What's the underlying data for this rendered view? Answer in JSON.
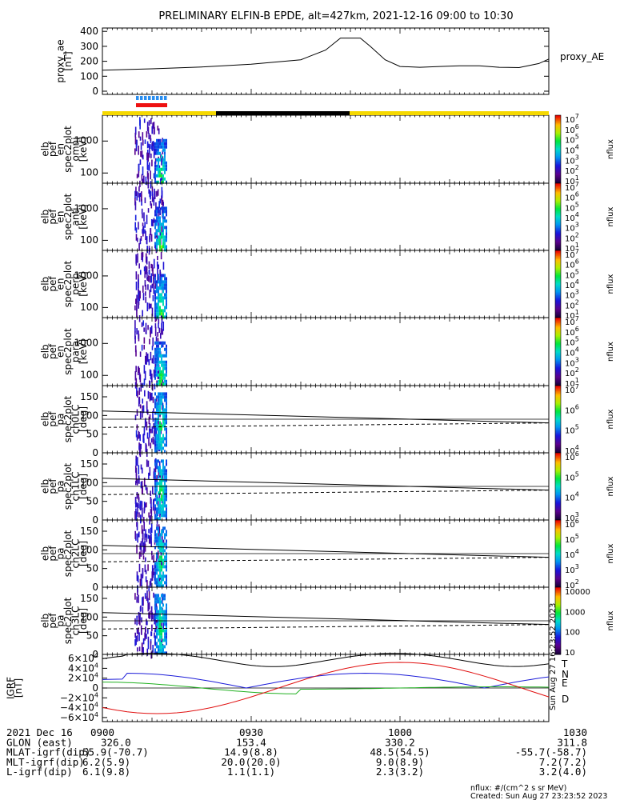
{
  "title": "PRELIMINARY ELFIN-B EPDE, alt=427km, 2021-12-16 09:00 to 10:30",
  "colors": {
    "yellow": "#f5d800",
    "black": "#000000",
    "blue_bar": "#2a8ef0",
    "red_bar": "#ee1111",
    "T": "#000000",
    "N": "#1c1cd8",
    "E": "#20b020",
    "D": "#e01010"
  },
  "chart_data": [
    {
      "type": "line",
      "panel": "proxy_ae",
      "ylabel": "proxy_ae\n[nT]",
      "legend": "proxy_AE",
      "ylim": [
        0,
        420
      ],
      "yticks": [
        "400",
        "300",
        "200",
        "100",
        "0"
      ],
      "x_minutes": [
        0,
        10,
        20,
        30,
        40,
        45,
        48,
        50,
        52,
        54,
        57,
        60,
        64,
        68,
        72,
        76,
        80,
        84,
        88,
        90
      ],
      "values": [
        140,
        150,
        162,
        180,
        210,
        275,
        355,
        355,
        355,
        300,
        210,
        165,
        160,
        165,
        170,
        170,
        160,
        158,
        185,
        215
      ]
    },
    {
      "type": "heatmap",
      "panel": "omni",
      "ylabel": "elb\npef\nen\nspec2plot\nomni\n[keV]",
      "yticks": [
        "1000",
        "100"
      ],
      "cbar_ticks": [
        "10^7",
        "10^6",
        "10^5",
        "10^4",
        "10^3",
        "10^2",
        "10^1"
      ],
      "cbar_label": "nflux"
    },
    {
      "type": "heatmap",
      "panel": "anti",
      "ylabel": "elb\npef\nen\nspec2plot\nanti\n[keV]",
      "yticks": [
        "1000",
        "100"
      ],
      "cbar_ticks": [
        "10^7",
        "10^6",
        "10^5",
        "10^4",
        "10^3",
        "10^2",
        "10^1"
      ],
      "cbar_label": "nflux"
    },
    {
      "type": "heatmap",
      "panel": "perp",
      "ylabel": "elb\npef\nen\nspec2plot\nperp\n[keV]",
      "yticks": [
        "1000",
        "100"
      ],
      "cbar_ticks": [
        "10^7",
        "10^6",
        "10^5",
        "10^4",
        "10^3",
        "10^2",
        "10^1"
      ],
      "cbar_label": "nflux"
    },
    {
      "type": "heatmap",
      "panel": "para",
      "ylabel": "elb\npef\nen\nspec2plot\npara\n[keV]",
      "yticks": [
        "1000",
        "100"
      ],
      "cbar_ticks": [
        "10^7",
        "10^6",
        "10^5",
        "10^4",
        "10^3",
        "10^2",
        "10^1"
      ],
      "cbar_label": "nflux"
    },
    {
      "type": "heatmap",
      "panel": "ch0LC",
      "ylabel": "elb\npef\npa\nspec2plot\nch0LC\n[deg]",
      "ylim": [
        0,
        180
      ],
      "yticks": [
        "150",
        "100",
        "50",
        "0"
      ],
      "cbar_ticks": [
        "10^7",
        "10^6",
        "10^5",
        "10^4"
      ],
      "cbar_label": "nflux"
    },
    {
      "type": "heatmap",
      "panel": "ch1LC",
      "ylabel": "elb\npef\npa\nspec2plot\nch1LC\n[deg]",
      "ylim": [
        0,
        180
      ],
      "yticks": [
        "150",
        "100",
        "50",
        "0"
      ],
      "cbar_ticks": [
        "10^6",
        "10^5",
        "10^4",
        "10^3"
      ],
      "cbar_label": "nflux"
    },
    {
      "type": "heatmap",
      "panel": "ch2LC",
      "ylabel": "elb\npef\npa\nspec2plot\nch2LC\n[deg]",
      "ylim": [
        0,
        180
      ],
      "yticks": [
        "150",
        "100",
        "50",
        "0"
      ],
      "cbar_ticks": [
        "10^6",
        "10^5",
        "10^4",
        "10^3",
        "10^2"
      ],
      "cbar_label": "nflux"
    },
    {
      "type": "heatmap",
      "panel": "ch3LC",
      "ylabel": "elb\npef\npa\nspec2plot\nch3LC\n[deg]",
      "ylim": [
        0,
        180
      ],
      "yticks": [
        "150",
        "100",
        "50",
        "0"
      ],
      "cbar_ticks": [
        "10000",
        "1000",
        "100",
        "10"
      ],
      "cbar_label": "nflux"
    },
    {
      "type": "line",
      "panel": "igrf",
      "ylabel": "IGRF\n[nT]",
      "ylim": [
        -65000,
        65000
      ],
      "yticks": [
        "6×10^4",
        "4×10^4",
        "2×10^4",
        "0",
        "−2×10^4",
        "−4×10^4",
        "−6×10^4"
      ],
      "legend": [
        "T",
        "N",
        "E",
        "D"
      ],
      "side_note": "Sun Aug 27 16:23:52 2023"
    }
  ],
  "footer": {
    "rows": [
      [
        "2021 Dec 16",
        "0900",
        "0930",
        "1000",
        "1030"
      ],
      [
        "GLON (east)",
        "326.0",
        "153.4",
        "330.2",
        "311.8"
      ],
      [
        "MLAT-igrf(dip)",
        "55.9(-70.7)",
        "14.9(8.8)",
        "48.5(54.5)",
        "-55.7(-58.7)"
      ],
      [
        "MLT-igrf(dip)",
        "6.2(5.9)",
        "20.0(20.0)",
        "9.0(8.9)",
        "7.2(7.2)"
      ],
      [
        "L-igrf(dip)",
        "6.1(9.8)",
        "1.1(1.1)",
        "2.3(3.2)",
        "3.2(4.0)"
      ]
    ],
    "units": "nflux: #/(cm^2 s sr MeV)",
    "created": "Created: Sun Aug 27 23:23:52 2023"
  }
}
